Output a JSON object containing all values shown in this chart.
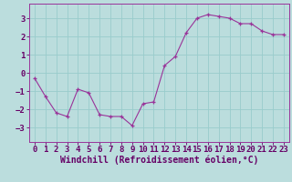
{
  "x": [
    0,
    1,
    2,
    3,
    4,
    5,
    6,
    7,
    8,
    9,
    10,
    11,
    12,
    13,
    14,
    15,
    16,
    17,
    18,
    19,
    20,
    21,
    22,
    23
  ],
  "y": [
    -0.3,
    -1.3,
    -2.2,
    -2.4,
    -0.9,
    -1.1,
    -2.3,
    -2.4,
    -2.4,
    -2.9,
    -1.7,
    -1.6,
    0.4,
    0.9,
    2.2,
    3.0,
    3.2,
    3.1,
    3.0,
    2.7,
    2.7,
    2.3,
    2.1,
    2.1
  ],
  "line_color": "#993399",
  "marker": "+",
  "bg_color": "#bbdddd",
  "grid_color": "#99cccc",
  "tick_label_color": "#660066",
  "xlabel": "Windchill (Refroidissement éolien,°C)",
  "xlabel_color": "#660066",
  "ylim": [
    -3.8,
    3.8
  ],
  "yticks": [
    -3,
    -2,
    -1,
    0,
    1,
    2,
    3
  ],
  "xlim": [
    -0.5,
    23.5
  ],
  "xticks": [
    0,
    1,
    2,
    3,
    4,
    5,
    6,
    7,
    8,
    9,
    10,
    11,
    12,
    13,
    14,
    15,
    16,
    17,
    18,
    19,
    20,
    21,
    22,
    23
  ],
  "spine_color": "#993399",
  "tick_fontsize": 6.5,
  "xlabel_fontsize": 7.0,
  "linewidth": 0.8,
  "markersize": 3
}
